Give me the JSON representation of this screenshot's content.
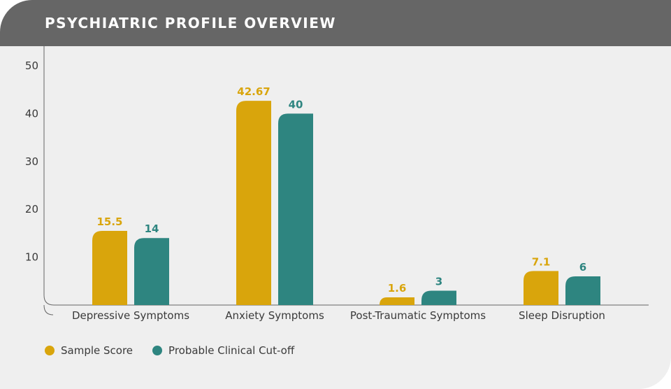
{
  "title": "PSYCHIATRIC PROFILE OVERVIEW",
  "colors": {
    "header_bg": "#666666",
    "card_bg": "#efefef",
    "sample": "#d9a50c",
    "cutoff": "#2e8580",
    "axis": "#666666",
    "text": "#3a3a3a"
  },
  "legend": {
    "items": [
      {
        "label": "Sample Score",
        "color": "#d9a50c"
      },
      {
        "label": "Probable Clinical Cut-off",
        "color": "#2e8580"
      }
    ]
  },
  "chart_data": {
    "type": "bar",
    "categories": [
      "Depressive Symptoms",
      "Anxiety Symptoms",
      "Post-Traumatic Symptoms",
      "Sleep Disruption"
    ],
    "series": [
      {
        "name": "Sample Score",
        "values": [
          15.5,
          42.67,
          1.6,
          7.1
        ],
        "labels": [
          "15.5",
          "42.67",
          "1.6",
          "7.1"
        ],
        "color": "#d9a50c"
      },
      {
        "name": "Probable Clinical Cut-off",
        "values": [
          14,
          40,
          3,
          6
        ],
        "labels": [
          "14",
          "40",
          "3",
          "6"
        ],
        "color": "#2e8580"
      }
    ],
    "yticks": [
      10,
      20,
      30,
      40,
      50
    ],
    "ylim": [
      0,
      50
    ],
    "grid": false,
    "data_labels": true,
    "legend_position": "bottom-left"
  }
}
